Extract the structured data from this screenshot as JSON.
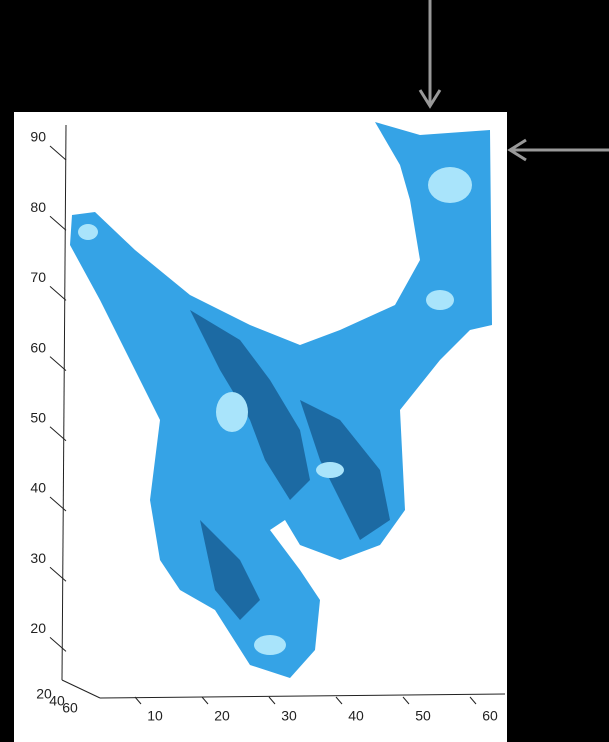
{
  "z_axis": {
    "ticks": [
      "90",
      "80",
      "70",
      "60",
      "50",
      "40",
      "30",
      "20"
    ]
  },
  "x_axis": {
    "ticks": [
      "10",
      "20",
      "30",
      "40",
      "50",
      "60"
    ]
  },
  "y_axis": {
    "ticks": [
      "20",
      "40",
      "60"
    ]
  }
}
